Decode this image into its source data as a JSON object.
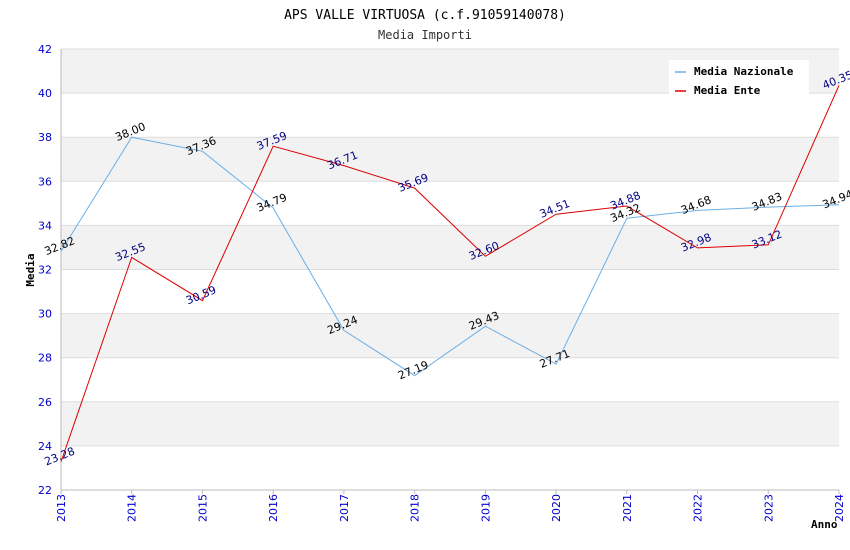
{
  "chart_data": {
    "type": "line",
    "title": "APS VALLE VIRTUOSA (c.f.91059140078)",
    "subtitle": "Media Importi",
    "xlabel": "Anno",
    "ylabel": "Media",
    "ylim": [
      22,
      42
    ],
    "yticks": [
      "22",
      "24",
      "26",
      "28",
      "30",
      "32",
      "34",
      "36",
      "38",
      "40",
      "42"
    ],
    "categories": [
      "2013",
      "2014",
      "2015",
      "2016",
      "2017",
      "2018",
      "2019",
      "2020",
      "2021",
      "2022",
      "2023",
      "2024"
    ],
    "grid": true,
    "legend_position": "top-right",
    "series": [
      {
        "name": "Media Nazionale",
        "color": "#6aaee6",
        "label_color": "#000000",
        "values": [
          32.82,
          38.0,
          37.36,
          34.79,
          29.24,
          27.19,
          29.43,
          27.71,
          34.32,
          34.68,
          34.83,
          34.94
        ],
        "labels": [
          "32.82",
          "38.00",
          "37.36",
          "34.79",
          "29.24",
          "27.19",
          "29.43",
          "27.71",
          "34.32",
          "34.68",
          "34.83",
          "34.94"
        ]
      },
      {
        "name": "Media Ente",
        "color": "#dd0000",
        "label_color": "#000080",
        "values": [
          23.28,
          32.55,
          30.59,
          37.59,
          36.71,
          35.69,
          32.6,
          34.51,
          34.88,
          32.98,
          33.12,
          40.35
        ],
        "labels": [
          "23.28",
          "32.55",
          "30.59",
          "37.59",
          "36.71",
          "35.69",
          "32.60",
          "34.51",
          "34.88",
          "32.98",
          "33.12",
          "40.35"
        ]
      }
    ]
  }
}
